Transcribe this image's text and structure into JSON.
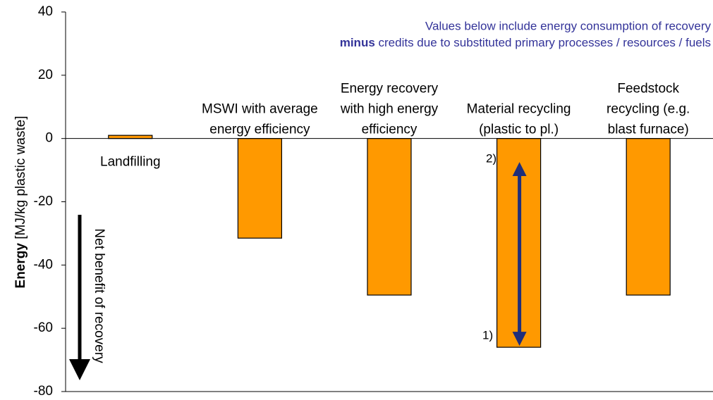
{
  "chart_data": {
    "type": "bar",
    "y_label": {
      "bold": "Energy",
      "rest": "[MJ/kg plastic waste]"
    },
    "categories": [
      [
        "Landfilling"
      ],
      [
        "MSWI with average",
        "energy efficiency"
      ],
      [
        "Energy recovery",
        "with high energy",
        "efficiency"
      ],
      [
        "Material recycling",
        "(plastic to pl.)"
      ],
      [
        "Feedstock",
        "recycling (e.g.",
        "blast furnace)"
      ]
    ],
    "values": [
      1,
      -31.5,
      -49.5,
      -66,
      -49.5
    ],
    "color": "#ff9900",
    "ylim": [
      -80,
      40
    ],
    "yticks": [
      -80,
      -60,
      -40,
      -20,
      0,
      20,
      40
    ],
    "note": {
      "line1": "Values below include energy consumption of recovery",
      "bold": "minus",
      "line2": "credits due to substituted primary processes / resources / fuels"
    },
    "benefit_label": "Net benefit of recovery",
    "arrow": {
      "category": 3,
      "from": -7,
      "to": -66,
      "top_label": "2)",
      "bottom_label": "1)",
      "color": "#1f2e7a"
    }
  }
}
